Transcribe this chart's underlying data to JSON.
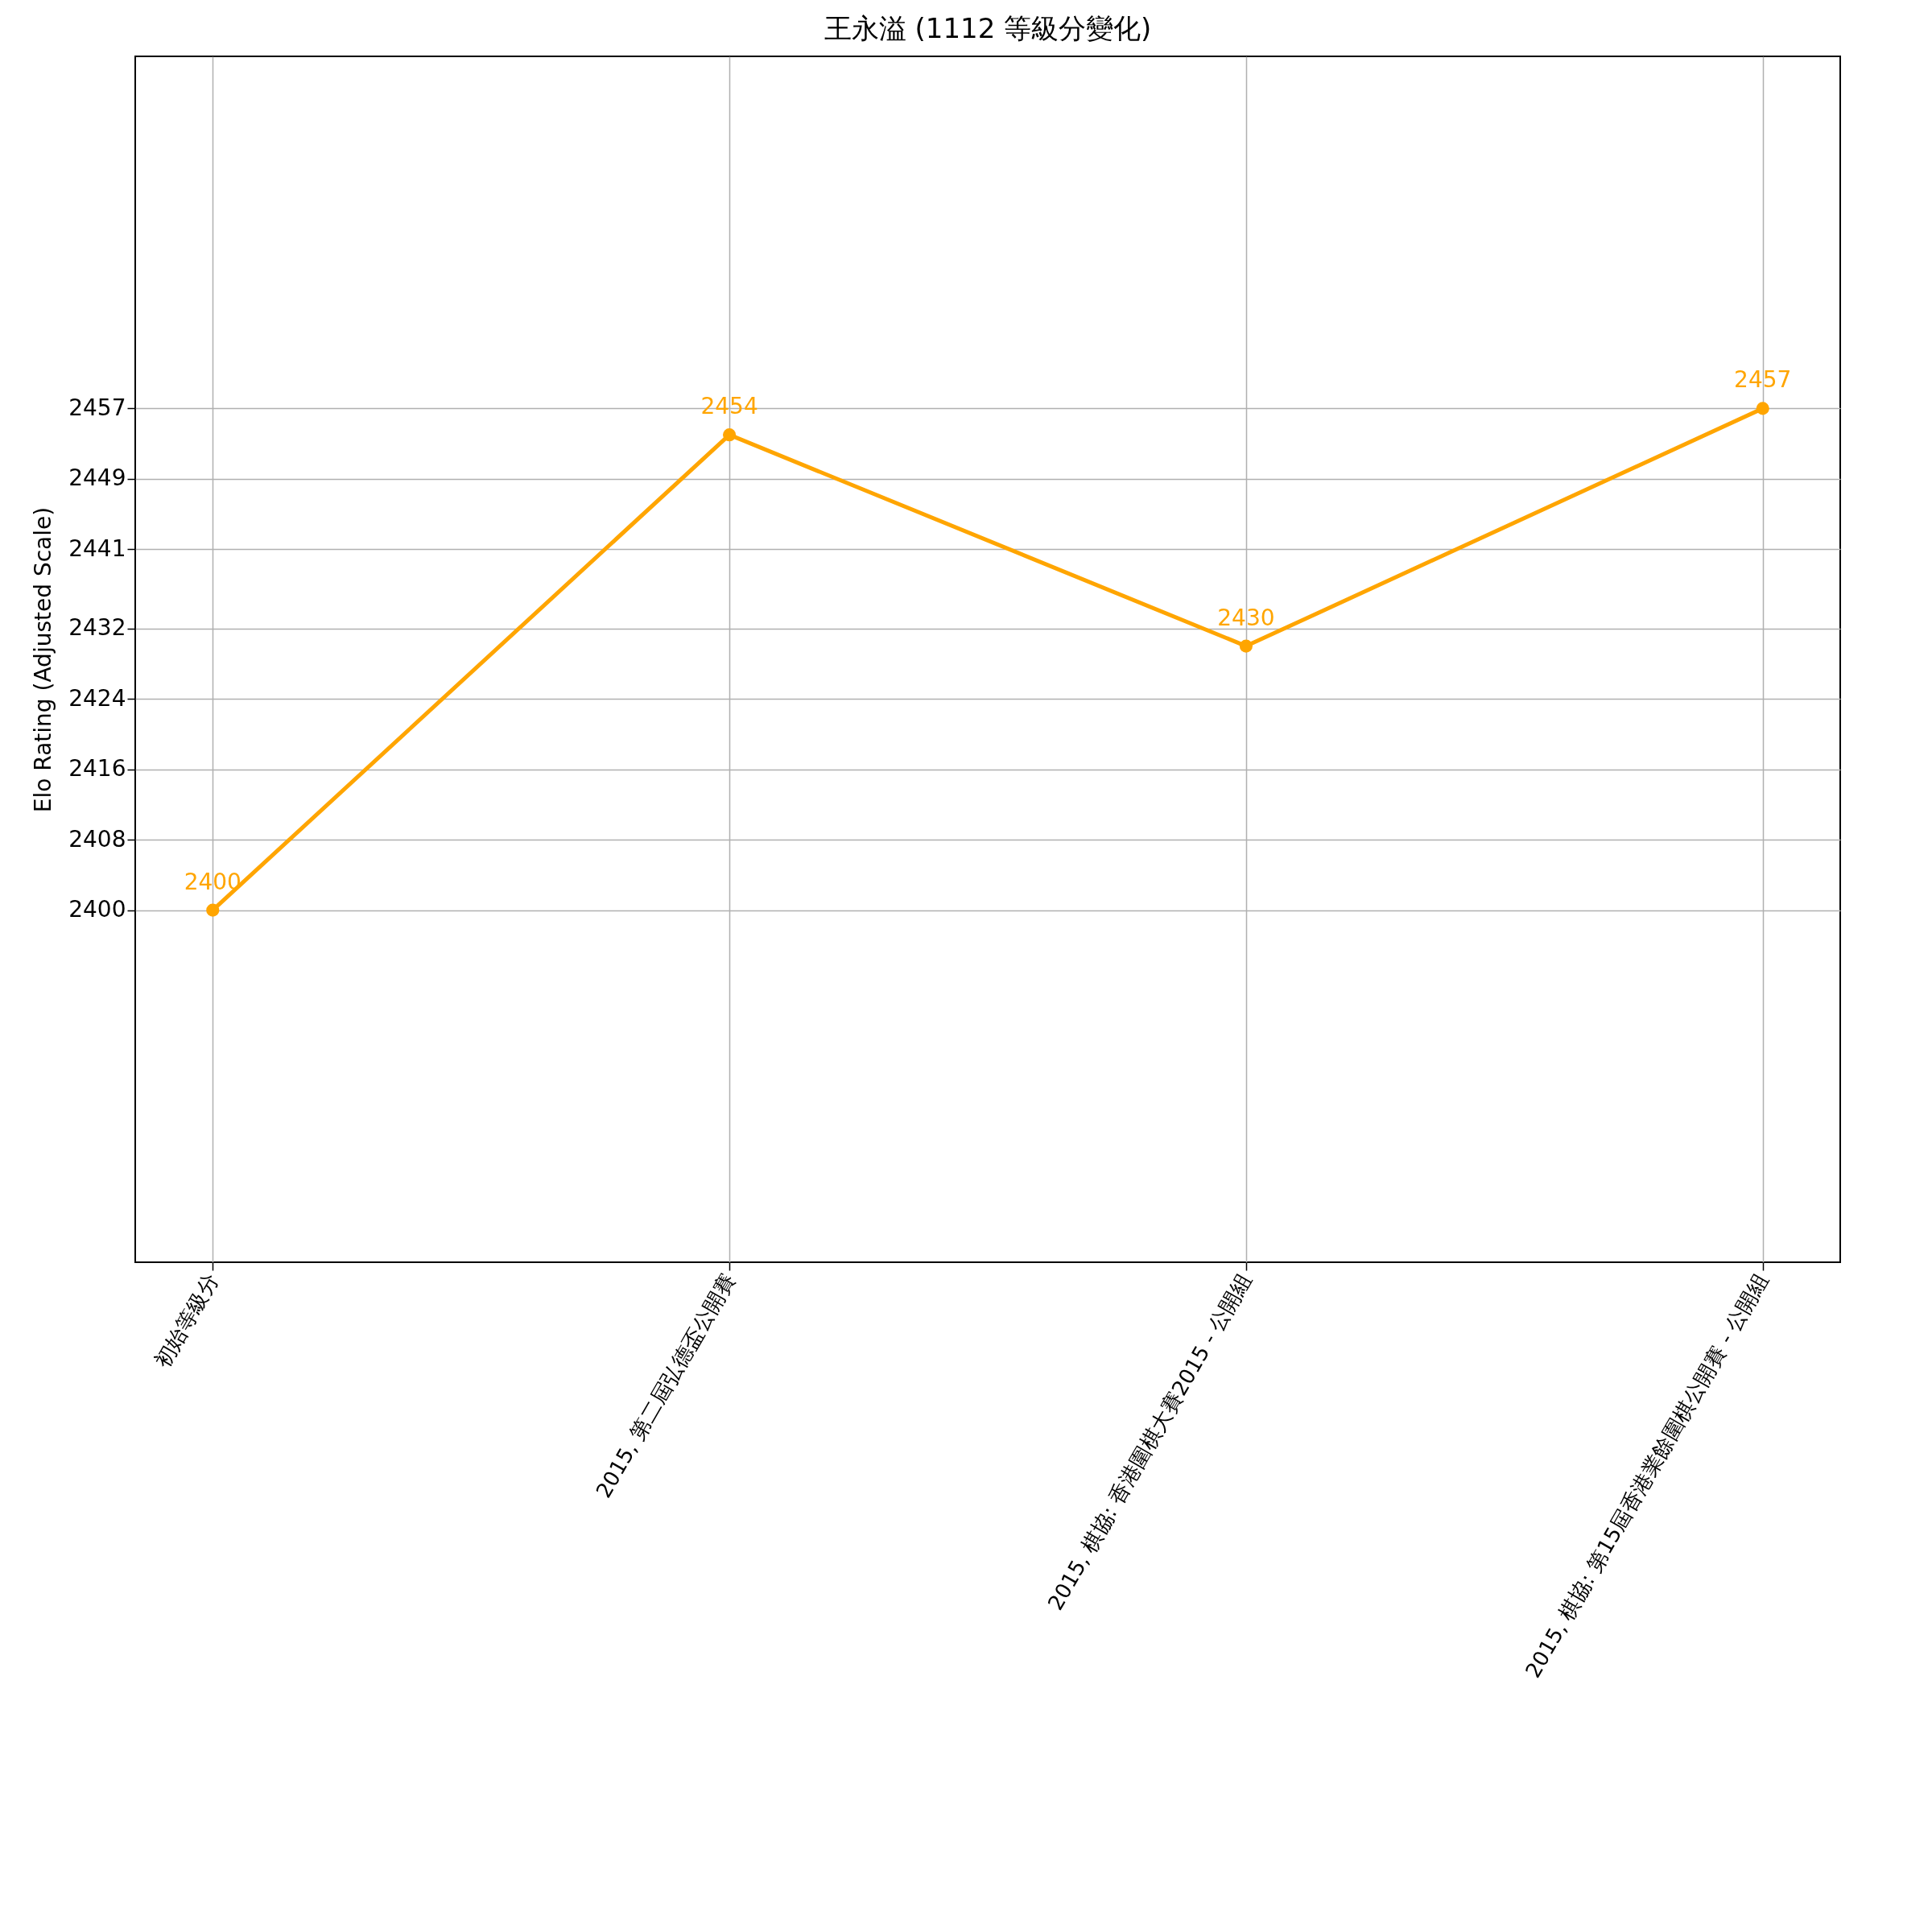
{
  "chart_data": {
    "type": "line",
    "title": "王永溢 (1112 等級分變化)",
    "ylabel": "Elo Rating (Adjusted Scale)",
    "categories": [
      "初始等級分",
      "2015, 第二屆弘德盃公開賽",
      "2015, 棋協: 香港圍棋大賽2015 - 公開組",
      "2015, 棋協: 第15屆香港業餘圍棋公開賽 - 公開組"
    ],
    "series": [
      {
        "color": "#ffa500",
        "values": [
          2400,
          2454,
          2430,
          2457
        ]
      }
    ],
    "ylim": [
      2360,
      2497
    ],
    "yticks": [
      2400,
      2408,
      2416,
      2424,
      2432,
      2441,
      2449,
      2457
    ],
    "grid": true,
    "marker": "circle",
    "line_style": "solid",
    "data_labels": true
  }
}
